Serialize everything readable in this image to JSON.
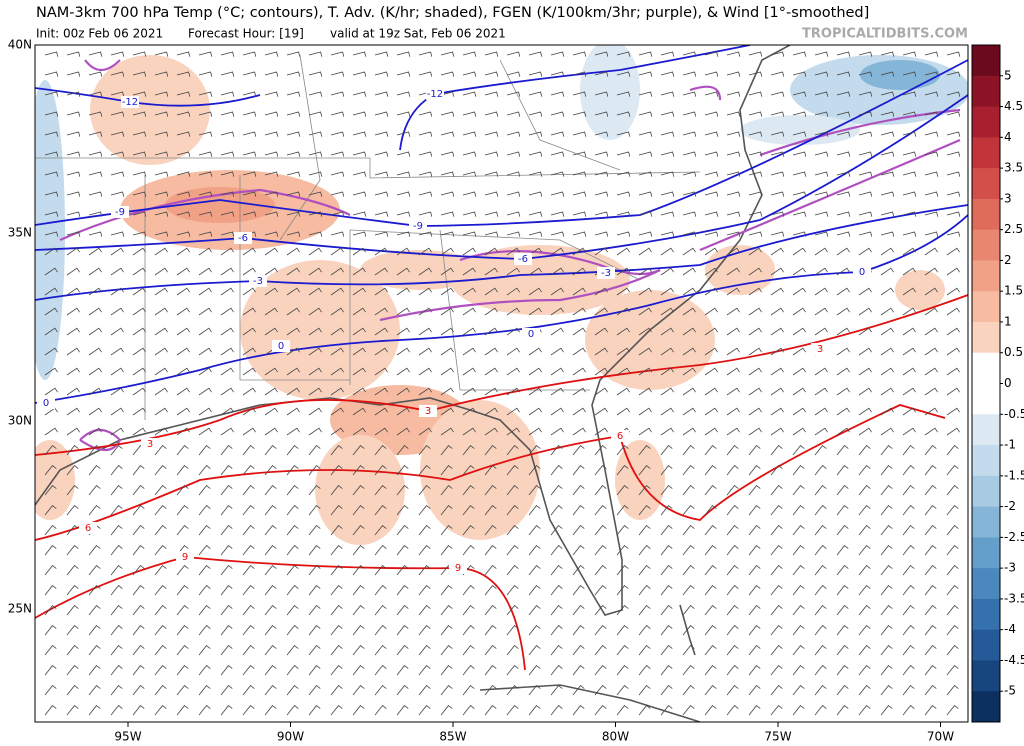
{
  "header": {
    "title": "NAM-3km 700 hPa Temp (°C; contours), T. Adv. (K/hr; shaded), FGEN (K/100km/3hr; purple), & Wind [1°-smoothed]",
    "init": "Init: 00z Feb 06 2021",
    "forecast_hour": "Forecast Hour: [19]",
    "valid": "valid at 19z Sat, Feb 06 2021",
    "credit": "TROPICALTIDBITS.COM"
  },
  "map": {
    "lat_labels": [
      "40N",
      "35N",
      "30N",
      "25N"
    ],
    "lon_labels": [
      "95W",
      "90W",
      "85W",
      "80W",
      "75W",
      "70W"
    ],
    "contours": [
      {
        "color": "#1a1ad0",
        "labels": [
          -12,
          -12,
          -9,
          -9,
          -6,
          -6,
          -3,
          -3,
          0,
          0,
          0,
          0
        ]
      },
      {
        "color": "#e01010",
        "labels": [
          3,
          3,
          3,
          6,
          6,
          9,
          9
        ]
      }
    ]
  },
  "colorbar": {
    "lim": [
      -5.5,
      5.5
    ],
    "ticks": [
      5,
      4.5,
      4,
      3.5,
      3,
      2.5,
      2,
      1.5,
      1,
      0.5,
      0,
      -0.5,
      -1,
      -1.5,
      -2,
      -2.5,
      -3,
      -3.5,
      -4,
      -4.5,
      -5
    ],
    "colors": [
      "#6b0a1e",
      "#8c1326",
      "#a8202f",
      "#c0343a",
      "#d24f4a",
      "#df6b5b",
      "#e8866f",
      "#f0a186",
      "#f6bba1",
      "#fad3bf",
      "#ffffff",
      "#ffffff",
      "#dce9f3",
      "#c3dbec",
      "#a6cbe3",
      "#85b6d8",
      "#649fcb",
      "#4a88bd",
      "#3571ac",
      "#245a97",
      "#17457d",
      "#0c3160"
    ]
  }
}
